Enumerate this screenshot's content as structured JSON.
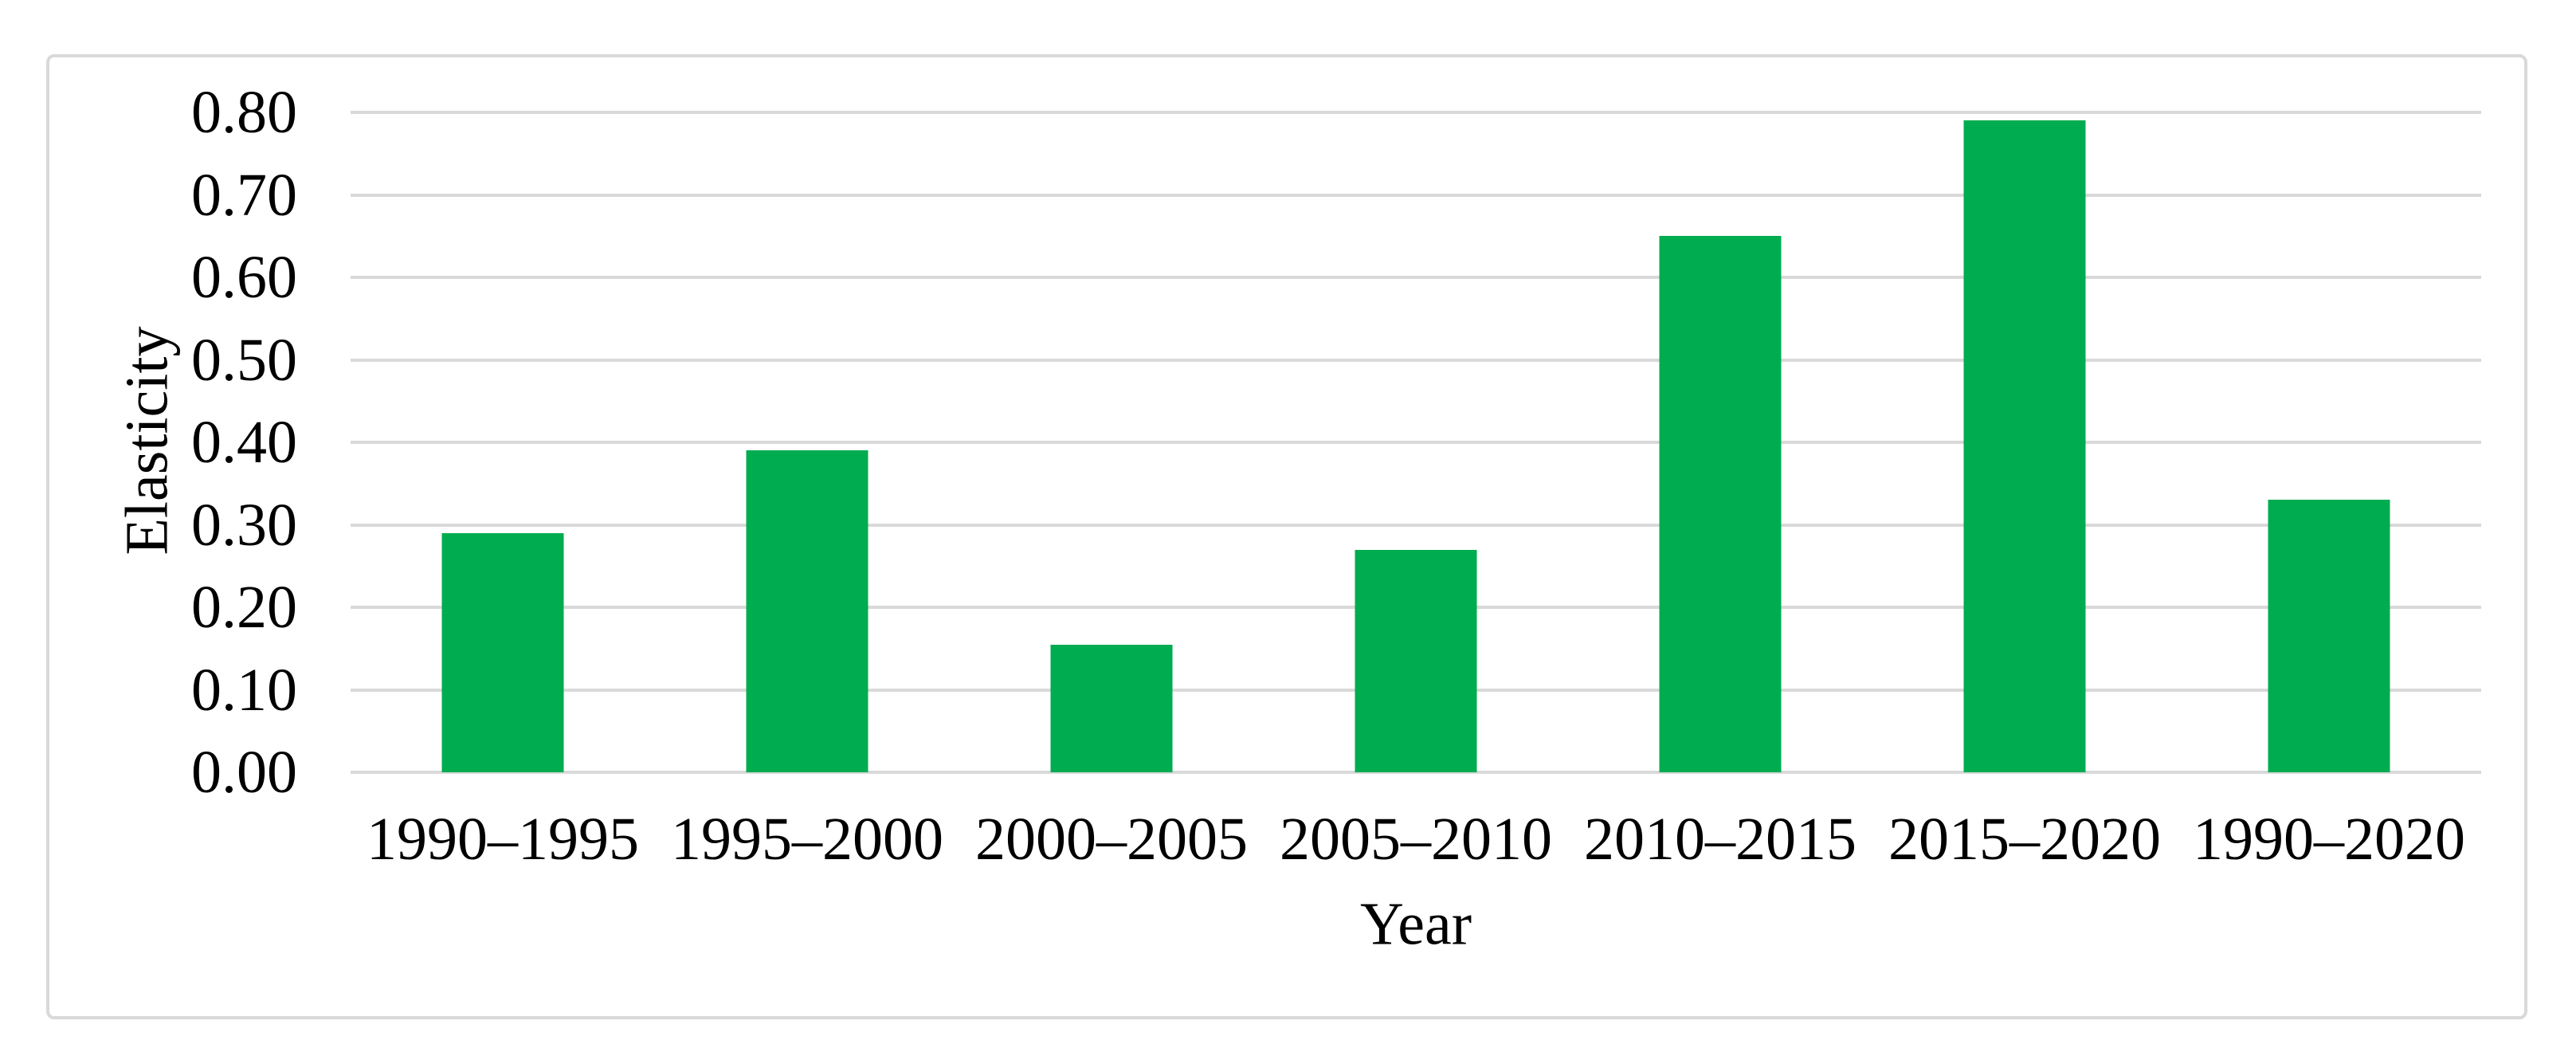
{
  "figure": {
    "y_axis_title": "Elasticity",
    "x_axis_title": "Year",
    "colors": {
      "bar": "#00ac50",
      "gridline": "#d9d9d9",
      "panel_border": "#d9d9d9",
      "text": "#000000",
      "background": "#ffffff"
    }
  },
  "chart_data": {
    "type": "bar",
    "title": "",
    "xlabel": "Year",
    "ylabel": "Elasticity",
    "categories": [
      "1990–1995",
      "1995–2000",
      "2000–2005",
      "2005–2010",
      "2010–2015",
      "2015–2020",
      "1990–2020"
    ],
    "values": [
      0.29,
      0.39,
      0.155,
      0.27,
      0.65,
      0.79,
      0.33
    ],
    "y_tick_labels": [
      "0.80",
      "0.70",
      "0.60",
      "0.50",
      "0.40",
      "0.30",
      "0.20",
      "0.10",
      "0.00"
    ],
    "ylim": [
      0,
      0.8
    ],
    "ytick_step": 0.1,
    "grid": "horizontal-only",
    "legend": "none",
    "bar_color": "#00ac50"
  }
}
